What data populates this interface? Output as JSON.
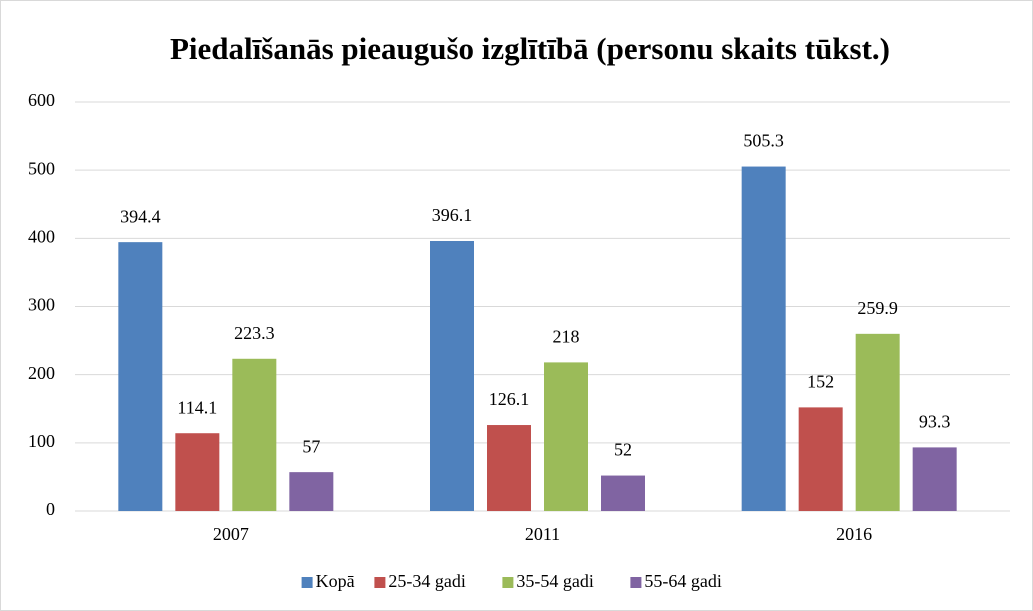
{
  "chart_data": {
    "type": "bar",
    "title": "Piedalīšanās pieaugušo izglītībā (personu skaits tūkst.)",
    "categories": [
      "2007",
      "2011",
      "2016"
    ],
    "series": [
      {
        "name": "Kopā",
        "color": "#4f81bd",
        "values": [
          394.4,
          396.1,
          505.3
        ]
      },
      {
        "name": "25-34 gadi",
        "color": "#c0504d",
        "values": [
          114.1,
          126.1,
          152
        ]
      },
      {
        "name": "35-54 gadi",
        "color": "#9bbb59",
        "values": [
          223.3,
          218,
          259.9
        ]
      },
      {
        "name": "55-64 gadi",
        "color": "#8064a2",
        "values": [
          57,
          52,
          93.3
        ]
      }
    ],
    "ylim": [
      0,
      600
    ],
    "yticks": [
      0,
      100,
      200,
      300,
      400,
      500,
      600
    ],
    "grid": true,
    "legend": "bottom"
  }
}
